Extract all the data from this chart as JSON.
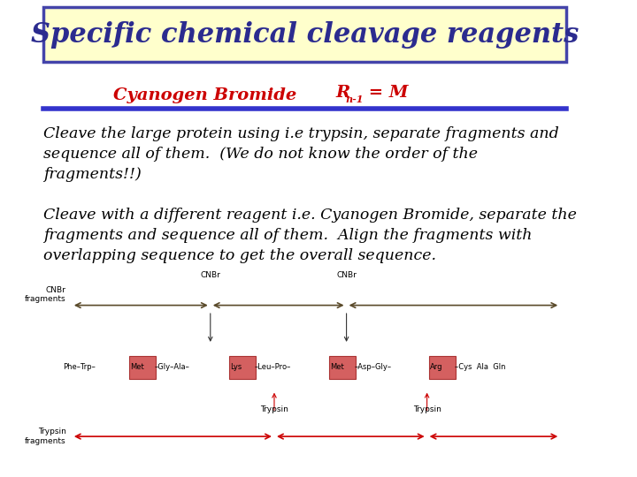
{
  "title": "Specific chemical cleavage reagents",
  "title_bg": "#ffffcc",
  "title_color": "#2b2b8f",
  "title_border_color": "#4444aa",
  "subtitle_text": "Cyanogen Bromide",
  "subtitle_color": "#cc0000",
  "divider_color": "#3333cc",
  "body_color": "#000000",
  "bg_color": "#ffffff",
  "paragraph1": "Cleave the large protein using i.e trypsin, separate fragments and\nsequence all of them.  (We do not know the order of the\nfragments!!)",
  "paragraph2": "Cleave with a different reagent i.e. Cyanogen Bromide, separate the\nfragments and sequence all of them.  Align the fragments with\noverlapping sequence to get the overall sequence.",
  "cnbr_arrow_color": "#5a4a2a",
  "trypsin_arrow_color": "#cc0000",
  "highlight_color": "#d46060",
  "highlight_edge_color": "#aa3333",
  "seq_tokens": [
    [
      "Phe–Trp–",
      false
    ],
    [
      "Met",
      true
    ],
    [
      "–Gly–Ala–",
      false
    ],
    [
      "Lys",
      true
    ],
    [
      "–Leu–Pro–",
      false
    ],
    [
      "Met",
      true
    ],
    [
      "–Asp–Gly–",
      false
    ],
    [
      "Arg",
      true
    ],
    [
      "–Cys  Ala  Gln",
      false
    ]
  ]
}
